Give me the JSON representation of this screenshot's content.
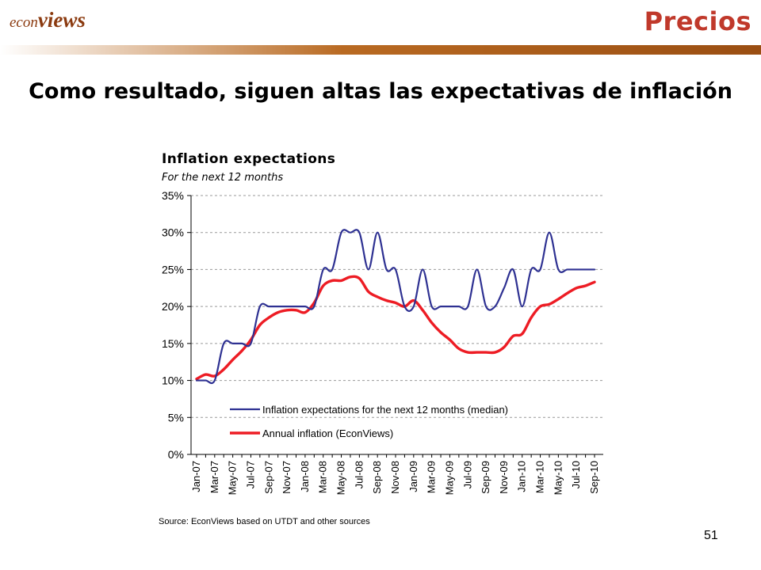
{
  "header": {
    "logo_econ": "econ",
    "logo_views": "views",
    "section": "Precios"
  },
  "headline": "Como resultado, siguen altas las expectativas de inflación",
  "page_number": "51",
  "colors": {
    "expectations": "#2e3192",
    "inflation": "#ed1c24",
    "section": "#c0392b",
    "logo": "#8b3a0f"
  },
  "chart_data": {
    "type": "line",
    "title": "Inflation expectations",
    "subtitle": "For the next 12 months",
    "source": "Source: EconViews based on UTDT and other sources",
    "ylim": [
      0,
      35
    ],
    "yticks": [
      "0%",
      "5%",
      "10%",
      "15%",
      "20%",
      "25%",
      "30%",
      "35%"
    ],
    "x": [
      "Jan-07",
      "Feb-07",
      "Mar-07",
      "Apr-07",
      "May-07",
      "Jun-07",
      "Jul-07",
      "Aug-07",
      "Sep-07",
      "Oct-07",
      "Nov-07",
      "Dec-07",
      "Jan-08",
      "Feb-08",
      "Mar-08",
      "Apr-08",
      "May-08",
      "Jun-08",
      "Jul-08",
      "Aug-08",
      "Sep-08",
      "Oct-08",
      "Nov-08",
      "Dec-08",
      "Jan-09",
      "Feb-09",
      "Mar-09",
      "Apr-09",
      "May-09",
      "Jun-09",
      "Jul-09",
      "Aug-09",
      "Sep-09",
      "Oct-09",
      "Nov-09",
      "Dec-09",
      "Jan-10",
      "Feb-10",
      "Mar-10",
      "Apr-10",
      "May-10",
      "Jun-10",
      "Jul-10",
      "Aug-10",
      "Sep-10"
    ],
    "xtick_labels": [
      "Jan-07",
      "Mar-07",
      "May-07",
      "Jul-07",
      "Sep-07",
      "Nov-07",
      "Jan-08",
      "Mar-08",
      "May-08",
      "Jul-08",
      "Sep-08",
      "Nov-08",
      "Jan-09",
      "Mar-09",
      "May-09",
      "Jul-09",
      "Sep-09",
      "Nov-09",
      "Jan-10",
      "Mar-10",
      "May-10",
      "Jul-10",
      "Sep-10"
    ],
    "series": [
      {
        "name": "Inflation expectations for the next 12 months (median)",
        "values": [
          10,
          10,
          10,
          15,
          15,
          15,
          15,
          20,
          20,
          20,
          20,
          20,
          20,
          20,
          25,
          25,
          30,
          30,
          30,
          25,
          30,
          25,
          25,
          20,
          20,
          25,
          20,
          20,
          20,
          20,
          20,
          25,
          20,
          20,
          22.5,
          25,
          20,
          25,
          25,
          30,
          25,
          25,
          25,
          25,
          25
        ]
      },
      {
        "name": "Annual inflation (EconViews)",
        "values": [
          10.2,
          10.8,
          10.6,
          11.5,
          12.8,
          14,
          15.5,
          17.5,
          18.5,
          19.2,
          19.5,
          19.5,
          19.2,
          20.5,
          22.8,
          23.5,
          23.5,
          24,
          23.8,
          22,
          21.3,
          20.8,
          20.5,
          20,
          20.8,
          19.5,
          17.8,
          16.5,
          15.5,
          14.3,
          13.8,
          13.8,
          13.8,
          13.8,
          14.5,
          16,
          16.3,
          18.5,
          20,
          20.3,
          21,
          21.8,
          22.5,
          22.8,
          23.3
        ]
      }
    ],
    "legend_placement": "inside-bottom",
    "grid": "dashed horizontal"
  }
}
